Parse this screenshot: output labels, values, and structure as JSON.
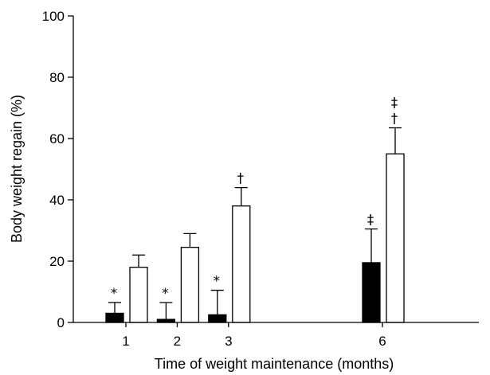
{
  "chart_data": {
    "type": "bar",
    "xlabel": "Time of weight maintenance (months)",
    "ylabel": "Body weight regain (%)",
    "ylim": [
      0,
      100
    ],
    "yticks": [
      0,
      20,
      40,
      60,
      80,
      100
    ],
    "xlim": [
      0,
      9
    ],
    "categories": [
      "1",
      "2",
      "3",
      "6"
    ],
    "x": [
      1,
      2,
      3,
      6
    ],
    "grid": false,
    "legend": "none",
    "series": [
      {
        "fill": "#000000",
        "values": [
          3,
          1,
          2.5,
          19.5
        ],
        "errors": [
          3.5,
          5.5,
          8,
          11
        ],
        "annotations": [
          "*",
          "*",
          "*",
          "‡"
        ]
      },
      {
        "fill": "#ffffff",
        "values": [
          18,
          24.5,
          38,
          55
        ],
        "errors": [
          4,
          4.5,
          6,
          8.5
        ],
        "annotations": [
          "",
          "",
          "†",
          "‡\n†"
        ]
      }
    ]
  }
}
